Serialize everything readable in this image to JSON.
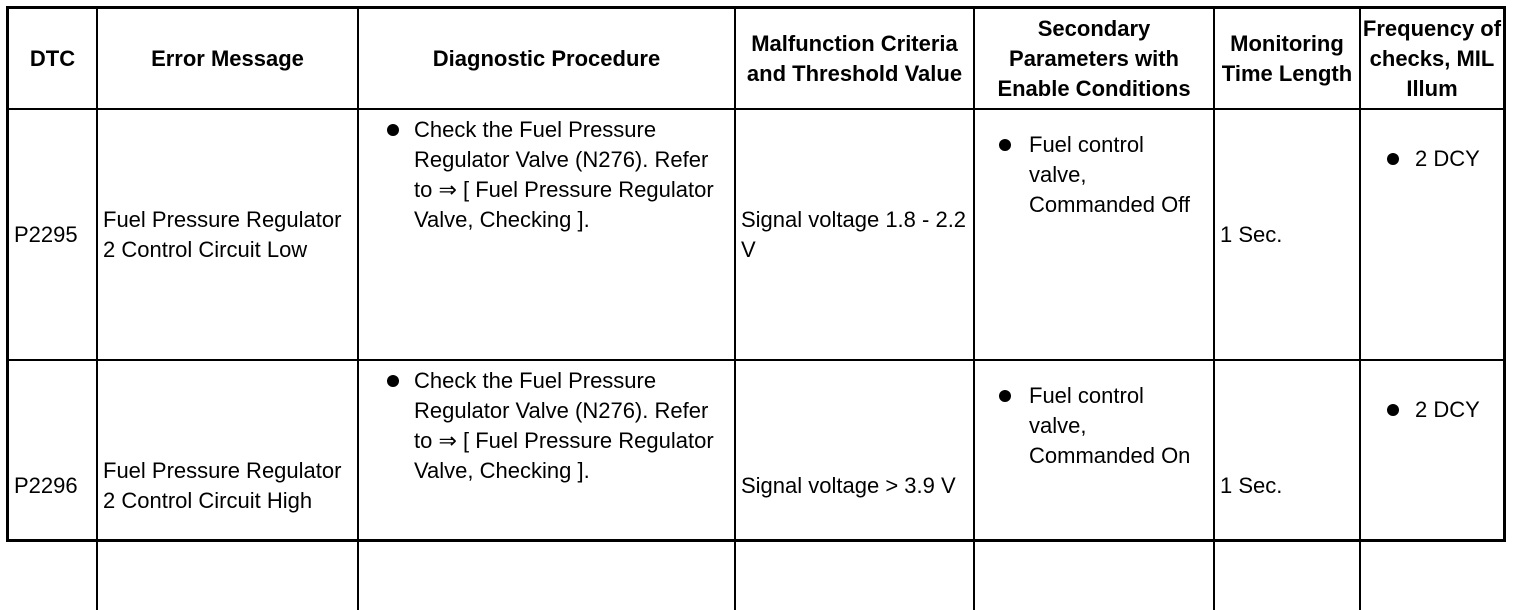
{
  "table": {
    "headers": {
      "dtc": "DTC",
      "error": "Error Message",
      "procedure": "Diagnostic Procedure",
      "criteria": "Malfunction Criteria and Threshold Value",
      "secondary": "Secondary Parameters with Enable Conditions",
      "monitoring": "Monitoring Time Length",
      "frequency": "Frequency of checks, MIL Illum"
    },
    "rows": [
      {
        "dtc": "P2295",
        "error": "Fuel Pressure Regulator 2 Control Circuit Low",
        "procedure": "Check the Fuel Pressure Regulator Valve (N276). Refer to ⇒ [ Fuel Pressure Regulator Valve, Checking ].",
        "criteria": "Signal voltage 1.8 - 2.2 V",
        "secondary": "Fuel control valve, Commanded Off",
        "monitoring": "1 Sec.",
        "frequency": "2 DCY"
      },
      {
        "dtc": "P2296",
        "error": "Fuel Pressure Regulator 2 Control Circuit High",
        "procedure": "Check the Fuel Pressure Regulator Valve (N276). Refer to ⇒ [ Fuel Pressure Regulator Valve, Checking ].",
        "criteria": "Signal voltage > 3.9 V",
        "secondary": "Fuel control valve, Commanded On",
        "monitoring": "1 Sec.",
        "frequency": "2 DCY"
      }
    ]
  }
}
